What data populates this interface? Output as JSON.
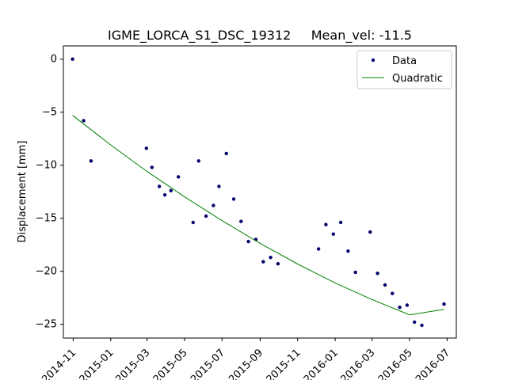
{
  "chart_data": {
    "type": "scatter",
    "title": "IGME_LORCA_S1_DSC_19312     Mean_vel: -11.5",
    "xlabel": "",
    "ylabel": "Displacement [mm]",
    "x_axis": "date",
    "xlim": [
      "2014-10-16",
      "2016-07-16"
    ],
    "ylim": [
      -26.3,
      1.25
    ],
    "yticks": [
      0,
      -5,
      -10,
      -15,
      -20,
      -25
    ],
    "ytick_labels": [
      "0",
      "−5",
      "−10",
      "−15",
      "−20",
      "−25"
    ],
    "xticks": [
      "2014-11-01",
      "2015-01-01",
      "2015-03-01",
      "2015-05-01",
      "2015-07-01",
      "2015-09-01",
      "2015-11-01",
      "2016-01-01",
      "2016-03-01",
      "2016-05-01",
      "2016-07-01"
    ],
    "xtick_labels": [
      "2014-11",
      "2015-01",
      "2015-03",
      "2015-05",
      "2015-07",
      "2015-09",
      "2015-11",
      "2016-01",
      "2016-03",
      "2016-05",
      "2016-07"
    ],
    "grid": false,
    "legend_position": "top-right",
    "series": [
      {
        "name": "Data",
        "kind": "points",
        "color": "#00006b",
        "points": [
          [
            "2014-10-31",
            0.0
          ],
          [
            "2014-11-18",
            -5.8
          ],
          [
            "2014-11-30",
            -9.6
          ],
          [
            "2015-02-28",
            -8.4
          ],
          [
            "2015-03-09",
            -10.2
          ],
          [
            "2015-03-21",
            -12.0
          ],
          [
            "2015-03-30",
            -12.8
          ],
          [
            "2015-04-09",
            -12.4
          ],
          [
            "2015-04-21",
            -11.1
          ],
          [
            "2015-05-15",
            -15.4
          ],
          [
            "2015-05-24",
            -9.6
          ],
          [
            "2015-06-05",
            -14.8
          ],
          [
            "2015-06-17",
            -13.8
          ],
          [
            "2015-06-26",
            -12.0
          ],
          [
            "2015-07-08",
            -8.9
          ],
          [
            "2015-07-20",
            -13.2
          ],
          [
            "2015-08-01",
            -15.3
          ],
          [
            "2015-08-13",
            -17.2
          ],
          [
            "2015-08-25",
            -17.0
          ],
          [
            "2015-09-06",
            -19.1
          ],
          [
            "2015-09-18",
            -18.7
          ],
          [
            "2015-09-30",
            -19.3
          ],
          [
            "2015-12-05",
            -17.9
          ],
          [
            "2015-12-17",
            -15.6
          ],
          [
            "2015-12-29",
            -16.5
          ],
          [
            "2016-01-10",
            -15.4
          ],
          [
            "2016-01-22",
            -18.1
          ],
          [
            "2016-02-03",
            -20.1
          ],
          [
            "2016-02-27",
            -16.3
          ],
          [
            "2016-03-10",
            -20.2
          ],
          [
            "2016-03-22",
            -21.3
          ],
          [
            "2016-04-03",
            -22.1
          ],
          [
            "2016-04-15",
            -23.4
          ],
          [
            "2016-04-27",
            -23.2
          ],
          [
            "2016-05-09",
            -24.8
          ],
          [
            "2016-05-21",
            -25.1
          ],
          [
            "2016-06-26",
            -23.1
          ]
        ]
      },
      {
        "name": "Quadratic",
        "kind": "line",
        "color": "#008000",
        "points": [
          [
            "2014-10-31",
            -5.3
          ],
          [
            "2015-01-01",
            -8.09
          ],
          [
            "2015-03-01",
            -10.59
          ],
          [
            "2015-05-01",
            -12.98
          ],
          [
            "2015-07-01",
            -15.23
          ],
          [
            "2015-09-01",
            -17.37
          ],
          [
            "2015-11-01",
            -19.32
          ],
          [
            "2016-01-01",
            -21.1
          ],
          [
            "2016-03-01",
            -22.67
          ],
          [
            "2016-05-01",
            -24.11
          ],
          [
            "2016-06-26",
            -23.6
          ]
        ]
      }
    ]
  }
}
